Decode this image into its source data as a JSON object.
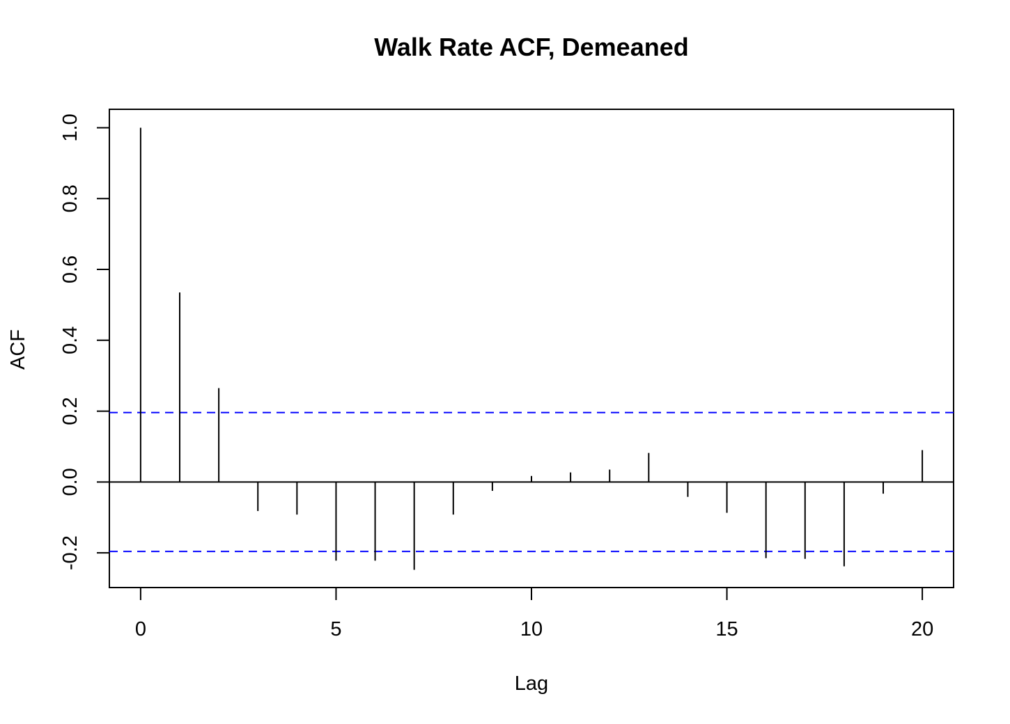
{
  "chart_data": {
    "type": "bar",
    "subtype": "acf-lollipop",
    "title": "Walk Rate ACF, Demeaned",
    "xlabel": "Lag",
    "ylabel": "ACF",
    "x": [
      0,
      1,
      2,
      3,
      4,
      5,
      6,
      7,
      8,
      9,
      10,
      11,
      12,
      13,
      14,
      15,
      16,
      17,
      18,
      19,
      20
    ],
    "values": [
      1.0,
      0.535,
      0.265,
      -0.082,
      -0.092,
      -0.222,
      -0.222,
      -0.248,
      -0.092,
      -0.025,
      0.017,
      0.027,
      0.035,
      0.082,
      -0.042,
      -0.087,
      -0.215,
      -0.217,
      -0.238,
      -0.033,
      0.09
    ],
    "confidence_bounds": [
      0.196,
      -0.196
    ],
    "xlim": [
      -0.8,
      20.8
    ],
    "ylim": [
      -0.298,
      1.052
    ],
    "x_ticks": [
      0,
      5,
      10,
      15,
      20
    ],
    "x_tick_labels": [
      "0",
      "5",
      "10",
      "15",
      "20"
    ],
    "y_ticks": [
      -0.2,
      0.0,
      0.2,
      0.4,
      0.6,
      0.8,
      1.0
    ],
    "y_tick_labels": [
      "-0.2",
      "0.0",
      "0.2",
      "0.4",
      "0.6",
      "0.8",
      "1.0"
    ],
    "bound_color": "#0000ff",
    "bar_color": "#000000",
    "grid": false
  }
}
